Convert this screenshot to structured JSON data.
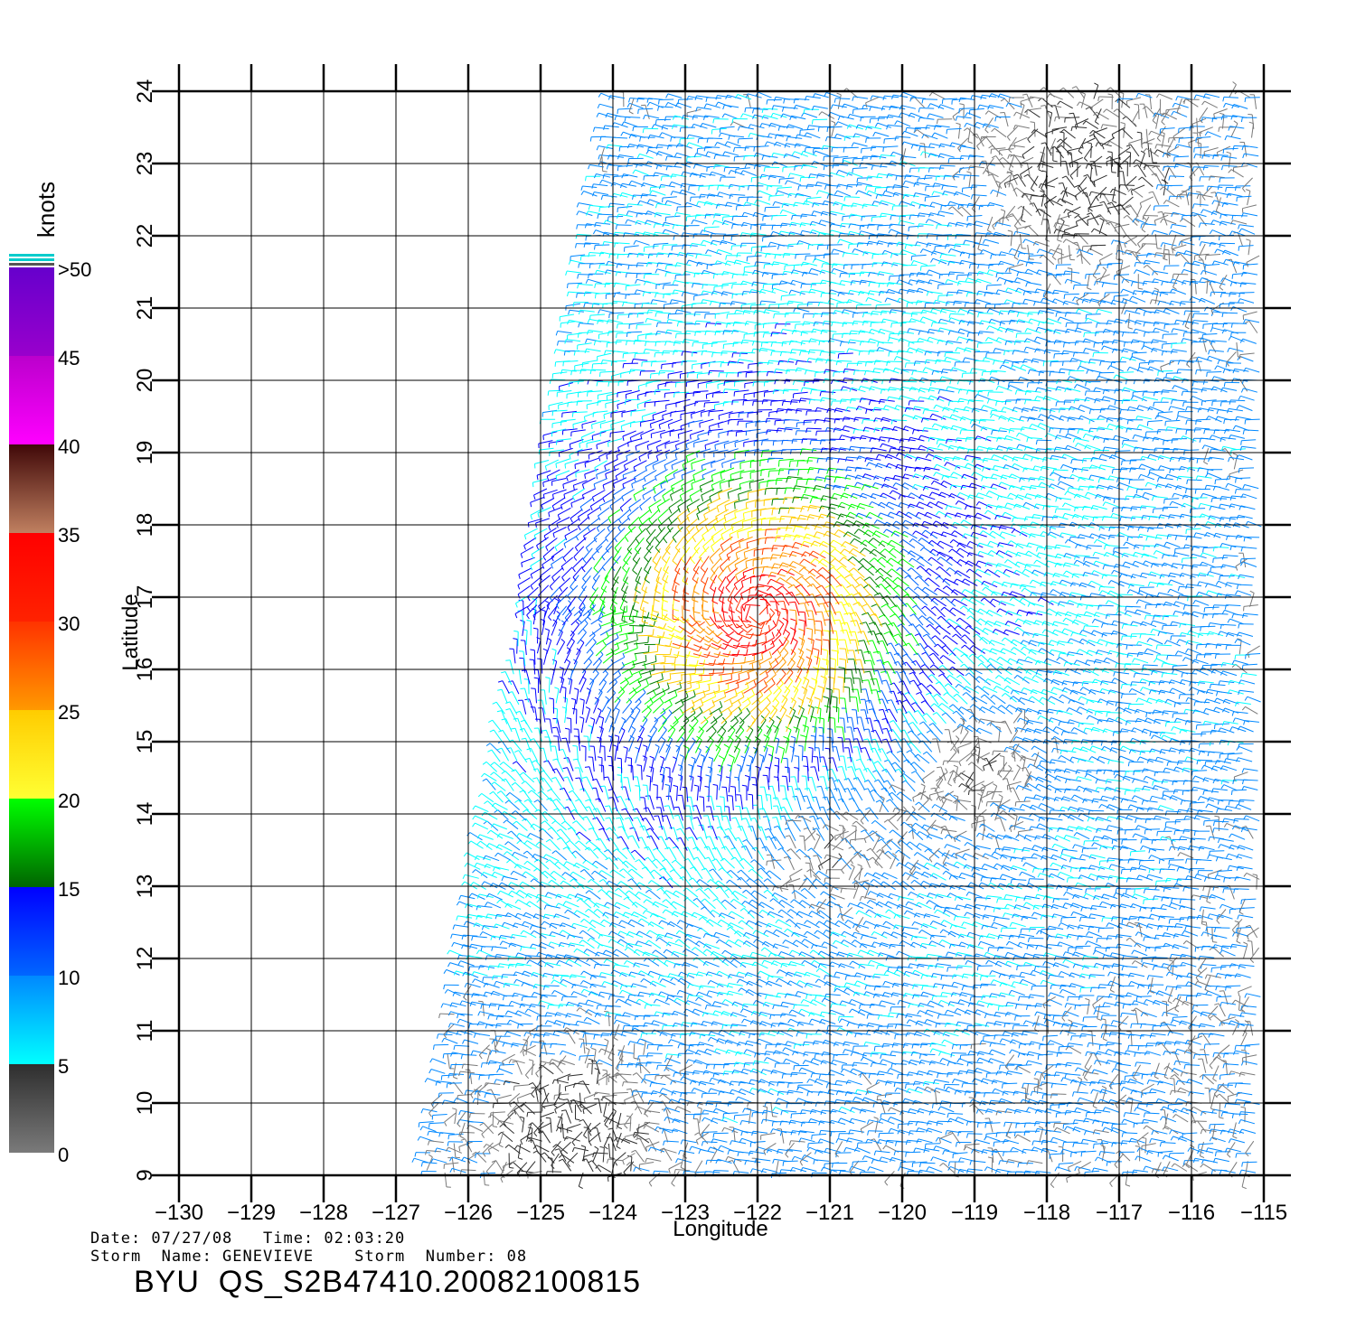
{
  "chart_data": {
    "type": "wind-barb-map",
    "xlabel": "Longitude",
    "ylabel": "Latitude",
    "xlim": [
      -130,
      -115
    ],
    "ylim": [
      9,
      24
    ],
    "x_ticks": [
      "-130",
      "-129",
      "-128",
      "-127",
      "-126",
      "-125",
      "-124",
      "-123",
      "-122",
      "-121",
      "-120",
      "-119",
      "-118",
      "-117",
      "-116",
      "-115"
    ],
    "y_ticks": [
      "9",
      "10",
      "11",
      "12",
      "13",
      "14",
      "15",
      "16",
      "17",
      "18",
      "19",
      "20",
      "21",
      "22",
      "23",
      "24"
    ],
    "grid": true,
    "swath": {
      "lon_bottom": [
        -126.6,
        -115.0
      ],
      "lon_top": [
        -124.0,
        -115.0
      ]
    },
    "storm_center": {
      "lon": -122.0,
      "lat": 16.8
    },
    "calm_regions": [
      {
        "lon": -117.5,
        "lat": 22.8
      },
      {
        "lon": -121.0,
        "lat": 13.6
      },
      {
        "lon": -124.5,
        "lat": 9.6
      },
      {
        "lon": -119.0,
        "lat": 14.6
      }
    ],
    "colorbar": {
      "title": "knots",
      "tick_labels": [
        "0",
        "5",
        "10",
        "15",
        "20",
        "25",
        "30",
        "35",
        "40",
        "45",
        ">50"
      ],
      "bins": [
        {
          "range": "0-5",
          "colors": [
            "#7a7a7a",
            "#2e2e2e"
          ]
        },
        {
          "range": "5-10",
          "colors": [
            "#00ffff",
            "#0088ff"
          ]
        },
        {
          "range": "10-15",
          "colors": [
            "#0066ff",
            "#0000ff"
          ]
        },
        {
          "range": "15-20",
          "colors": [
            "#008000",
            "#00ff00"
          ]
        },
        {
          "range": "20-25",
          "colors": [
            "#ffff00",
            "#ffcc00"
          ]
        },
        {
          "range": "25-30",
          "colors": [
            "#ff9900",
            "#ff4400"
          ]
        },
        {
          "range": "30-35",
          "colors": [
            "#ff3300",
            "#ff0000"
          ]
        },
        {
          "range": "35-40",
          "colors": [
            "#c08060",
            "#400808"
          ]
        },
        {
          "range": "40-45",
          "colors": [
            "#ff00ff",
            "#cc00cc"
          ]
        },
        {
          "range": "45-50",
          "colors": [
            "#aa00cc",
            "#6600cc"
          ]
        }
      ]
    }
  },
  "info": {
    "date_line": "Date: 07/27/08   Time: 02:03:20",
    "storm_line": "Storm  Name: GENEVIEVE    Storm  Number: 08",
    "id_line": "BYU  QS_S2B47410.20082100815"
  }
}
